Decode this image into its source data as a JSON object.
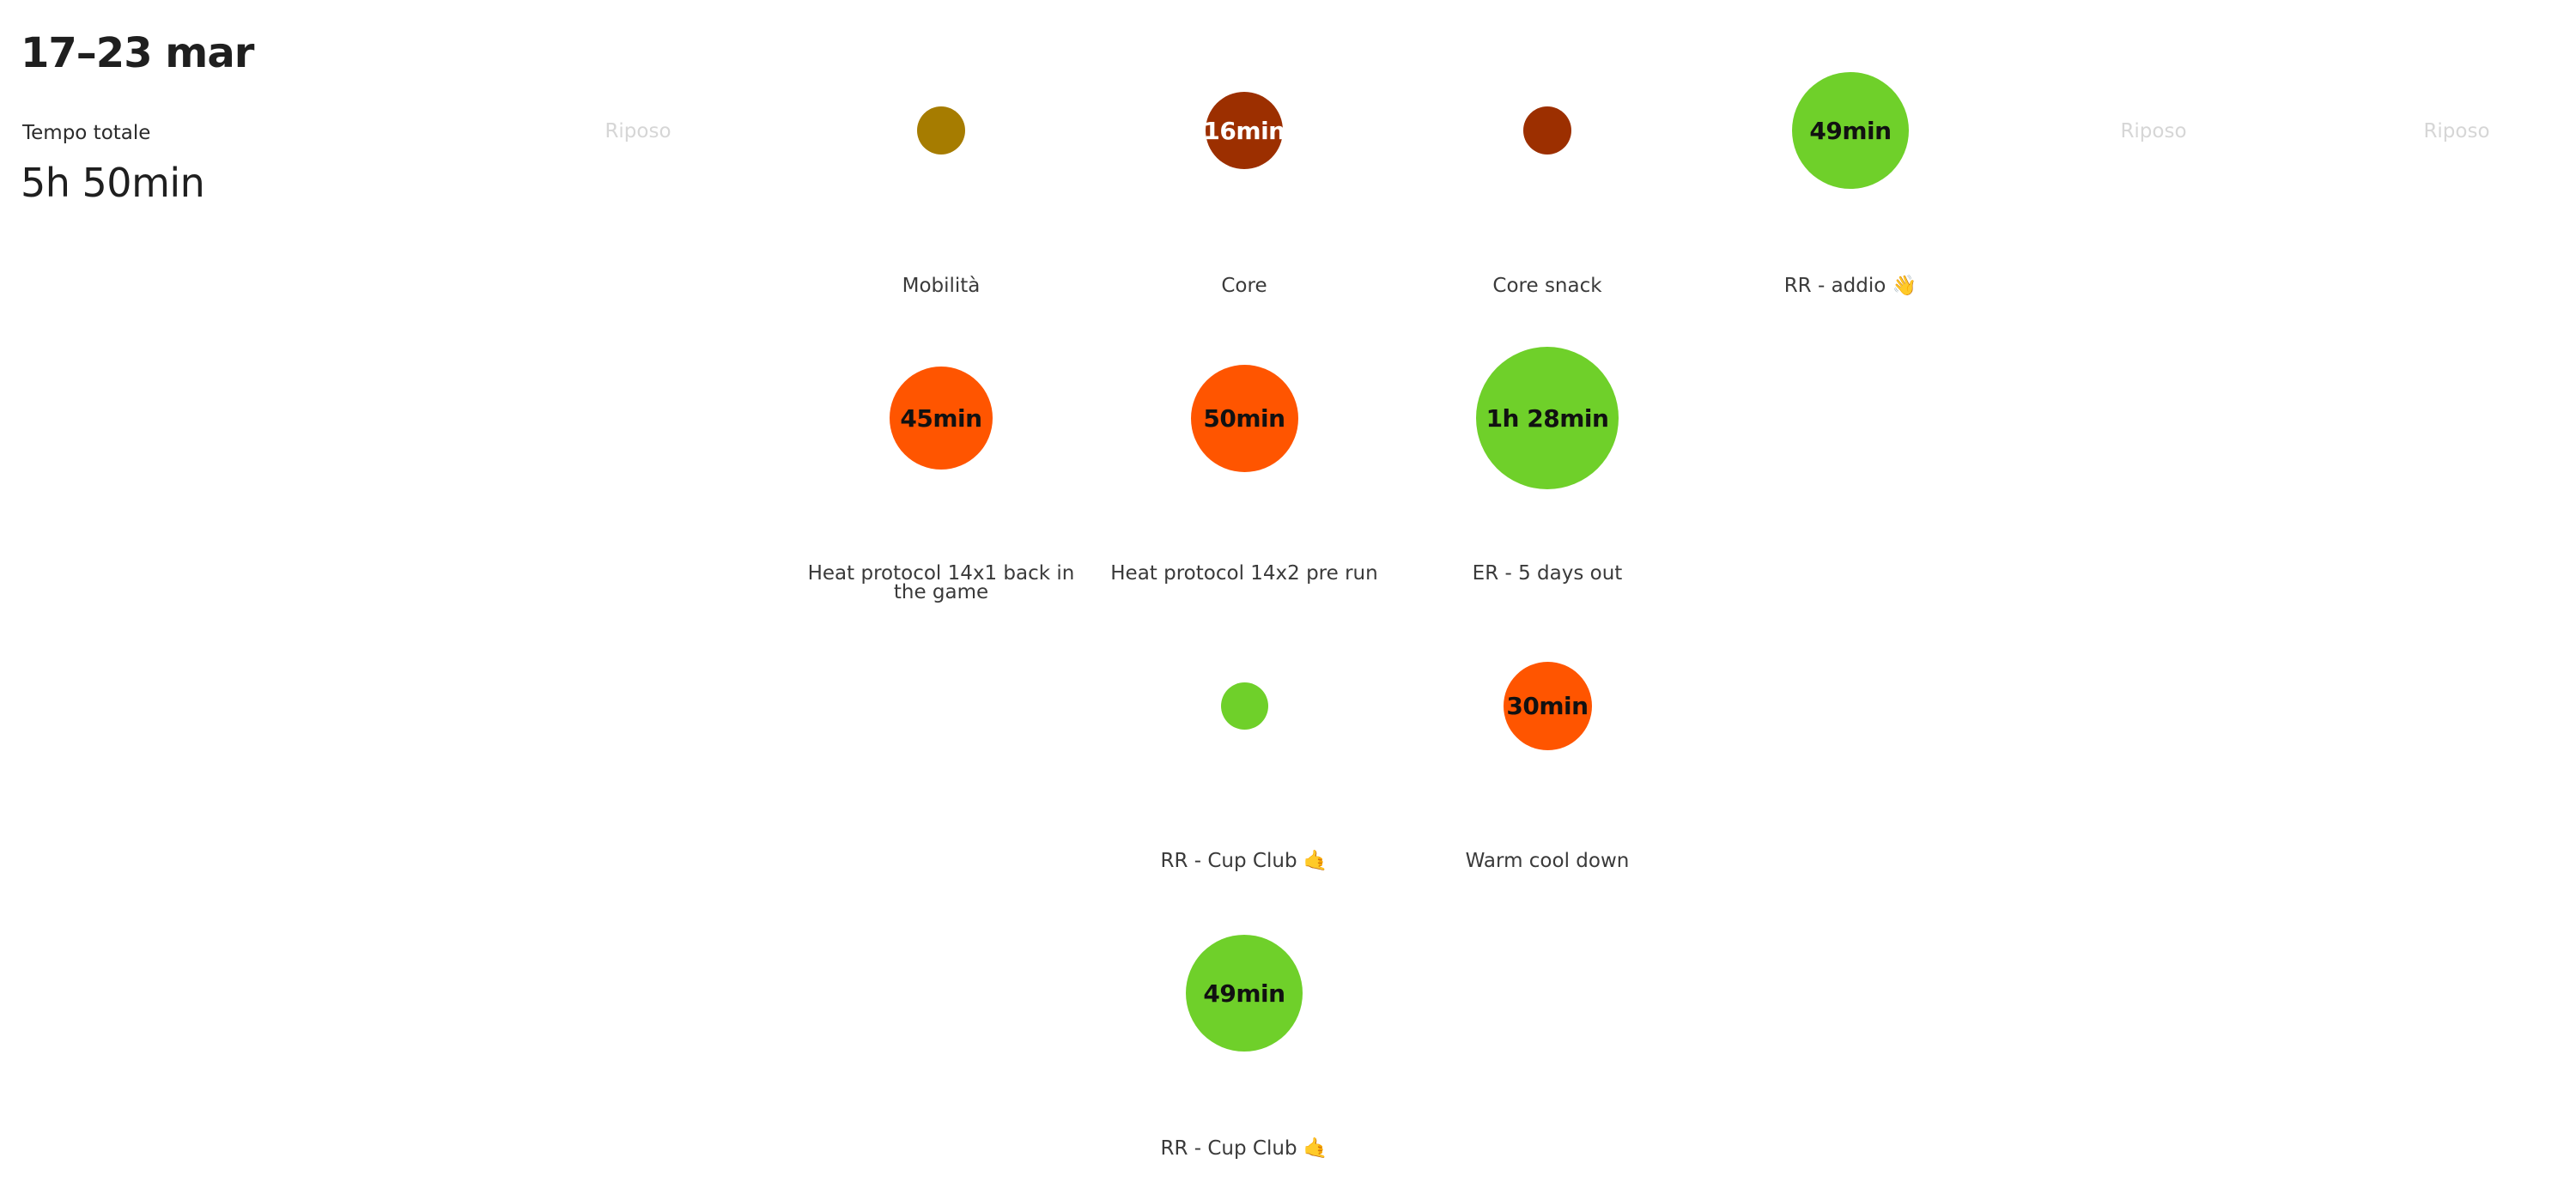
{
  "header": {
    "week_range": "17–23 mar",
    "total_label": "Tempo totale",
    "total_value": "5h 50min"
  },
  "days": [
    {
      "rest_label": "Riposo",
      "workouts": []
    },
    {
      "workouts": [
        {
          "name": "Mobilità",
          "duration_label": "",
          "color": "#a67c00",
          "size": 0.34,
          "text": "light"
        },
        {
          "name": "Heat protocol 14x1 back in the game",
          "duration_label": "45min",
          "color": "#ff5500",
          "size": 0.72,
          "text": "dark"
        }
      ]
    },
    {
      "workouts": [
        {
          "name": "Core",
          "duration_label": "16min",
          "color": "#9c2f00",
          "size": 0.54,
          "text": "light"
        },
        {
          "name": "Heat protocol 14x2 pre run",
          "duration_label": "50min",
          "color": "#ff5500",
          "size": 0.75,
          "text": "dark"
        },
        {
          "name": "RR - Cup Club 🤙",
          "duration_label": "",
          "color": "#6fd02a",
          "size": 0.33,
          "text": "dark"
        },
        {
          "name": "RR - Cup Club 🤙",
          "duration_label": "49min",
          "color": "#6fd02a",
          "size": 0.82,
          "text": "dark"
        }
      ]
    },
    {
      "workouts": [
        {
          "name": "Core snack",
          "duration_label": "",
          "color": "#9c2f00",
          "size": 0.34,
          "text": "light"
        },
        {
          "name": "ER - 5 days out",
          "duration_label": "1h 28min",
          "color": "#6fd02a",
          "size": 1.0,
          "text": "dark"
        },
        {
          "name": "Warm cool down",
          "duration_label": "30min",
          "color": "#ff5500",
          "size": 0.62,
          "text": "dark"
        }
      ]
    },
    {
      "workouts": [
        {
          "name": "RR - addio 👋",
          "duration_label": "49min",
          "color": "#6fd02a",
          "size": 0.82,
          "text": "dark"
        }
      ]
    },
    {
      "rest_label": "Riposo",
      "workouts": []
    },
    {
      "rest_label": "Riposo",
      "workouts": []
    }
  ]
}
